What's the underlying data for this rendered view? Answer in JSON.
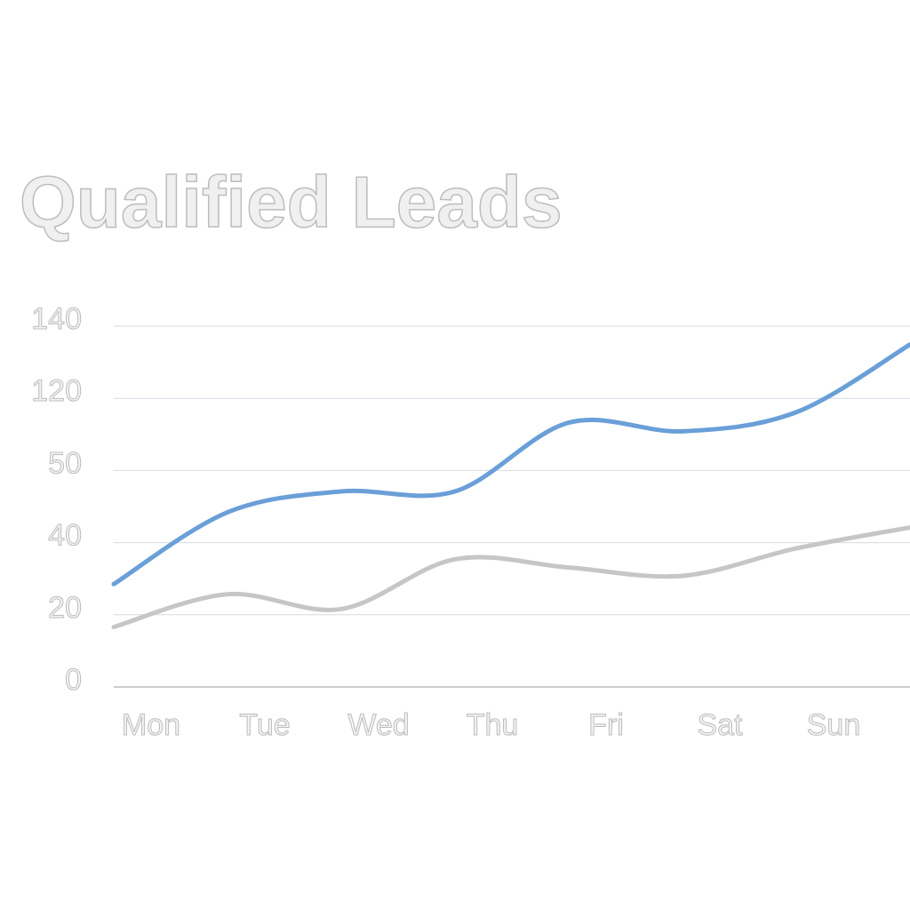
{
  "chart_data": {
    "type": "line",
    "title": "Qualified Leads",
    "categories": [
      "Mon",
      "Tue",
      "Wed",
      "Thu",
      "Fri",
      "Sat",
      "Sun",
      null
    ],
    "series": [
      {
        "color": "#6a9fd8",
        "values": [
          28.5,
          44.2,
          47.1,
          47.1,
          96.4,
          88,
          106.5,
          134.9
        ]
      },
      {
        "color": "#c6c6c6",
        "values": [
          16.6,
          25.7,
          21.6,
          35.4,
          33.1,
          30.8,
          38.4,
          42.1
        ]
      }
    ],
    "ylim": [
      0,
      140
    ],
    "yticks": [
      0,
      20,
      40,
      50,
      120,
      140
    ],
    "grid": true
  }
}
